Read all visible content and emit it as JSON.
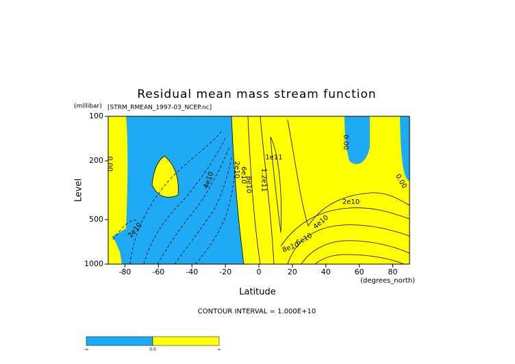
{
  "chart_data": {
    "type": "contour",
    "title": "Residual mean mass stream function",
    "subtitle": "[STRM_RMEAN_1997-03_NCEP.nc]",
    "x_label": "Latitude",
    "x_units": "(degrees_north)",
    "y_label": "Level",
    "y_units": "(millibar)",
    "xlim": [
      -90,
      90
    ],
    "ylim": [
      1000,
      100
    ],
    "y_scale": "log",
    "xticks": [
      -80,
      -60,
      -40,
      -20,
      0,
      20,
      40,
      60,
      80
    ],
    "yticks": [
      100,
      200,
      500,
      1000
    ],
    "note": "CONTOUR INTERVAL = 1.000E+10",
    "negative_color": "#1eaaf5",
    "positive_color": "#ffff00",
    "contour_labels": [
      {
        "text": "0.00",
        "lat": -89,
        "level": 210
      },
      {
        "text": "0.00",
        "lat": 52,
        "level": 150
      },
      {
        "text": "0.00",
        "lat": 85,
        "level": 275
      },
      {
        "text": "1e11",
        "lat": 9,
        "level": 190
      },
      {
        "text": "1.2e11",
        "lat": 3,
        "level": 270
      },
      {
        "text": "2e10",
        "lat": 55,
        "level": 380
      },
      {
        "text": "4e10",
        "lat": 37,
        "level": 520
      },
      {
        "text": "6e10",
        "lat": 27,
        "level": 680
      },
      {
        "text": "8e10",
        "lat": 19,
        "level": 770
      },
      {
        "text": "2e10",
        "lat": -74,
        "level": 590
      },
      {
        "text": "4e10",
        "lat": -30,
        "level": 270
      },
      {
        "text": "2e10",
        "lat": -13,
        "level": 230
      },
      {
        "text": "6e10",
        "lat": -9,
        "level": 250
      },
      {
        "text": "8e10",
        "lat": -6,
        "level": 290
      }
    ],
    "colorbar_labels": [
      "-∞",
      "0.0",
      "∞"
    ]
  }
}
